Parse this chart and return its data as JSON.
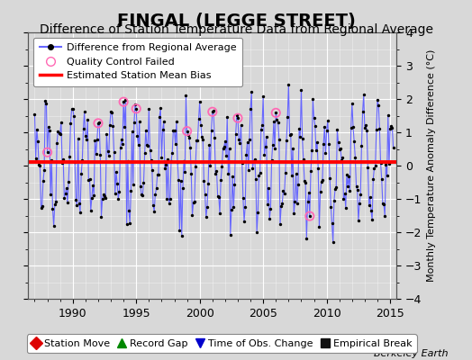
{
  "title": "FINGAL (LEGGE STREET)",
  "subtitle": "Difference of Station Temperature Data from Regional Average",
  "ylabel_right": "Monthly Temperature Anomaly Difference (°C)",
  "ylim": [
    -4,
    4
  ],
  "xlim": [
    1986.5,
    2015.5
  ],
  "yticks": [
    -4,
    -3,
    -2,
    -1,
    0,
    1,
    2,
    3,
    4
  ],
  "xticks": [
    1990,
    1995,
    2000,
    2005,
    2010,
    2015
  ],
  "bias_value": 0.1,
  "title_fontsize": 14,
  "subtitle_fontsize": 10,
  "bg_color": "#d8d8d8",
  "plot_bg_color": "#d8d8d8",
  "line_color": "#6666ff",
  "dot_color": "#000000",
  "bias_color": "#ff0000",
  "qc_color": "#ff69b4",
  "legend1_label": "Difference from Regional Average",
  "legend2_label": "Quality Control Failed",
  "legend3_label": "Estimated Station Mean Bias",
  "bottom_legend": [
    "Station Move",
    "Record Gap",
    "Time of Obs. Change",
    "Empirical Break"
  ],
  "bottom_legend_colors": [
    "#dd0000",
    "#008800",
    "#0000cc",
    "#111111"
  ],
  "bottom_legend_markers": [
    "D",
    "^",
    "v",
    "s"
  ],
  "watermark": "Berkeley Earth",
  "seasonal_amplitude": 1.3,
  "noise_std": 0.55,
  "seed": 17
}
